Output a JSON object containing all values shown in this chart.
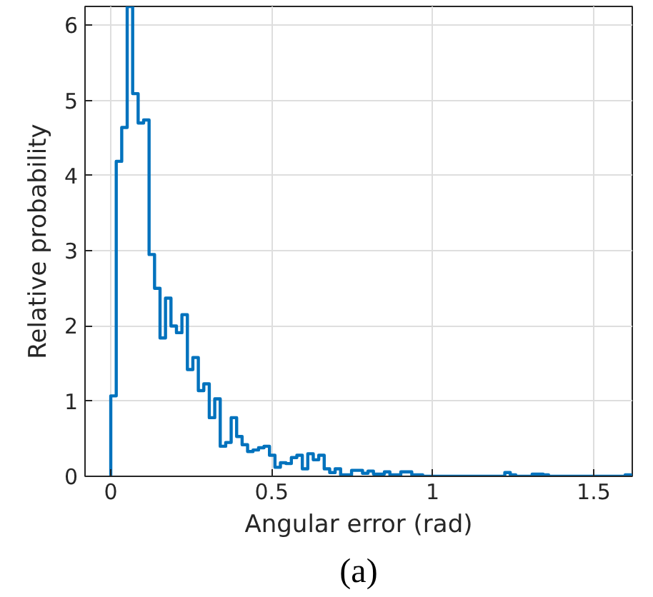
{
  "chart_data": {
    "type": "histogram",
    "xlabel": "Angular error (rad)",
    "ylabel": "Relative probability",
    "annotations": [
      "(a)"
    ],
    "bins": [
      0,
      0.017,
      0.034,
      0.051,
      0.068,
      0.085,
      0.102,
      0.119,
      0.136,
      0.153,
      0.17,
      0.187,
      0.204,
      0.221,
      0.238,
      0.255,
      0.272,
      0.289,
      0.306,
      0.323,
      0.34,
      0.357,
      0.374,
      0.391,
      0.408,
      0.425,
      0.442,
      0.459,
      0.476,
      0.493,
      0.51,
      0.527,
      0.544,
      0.561,
      0.578,
      0.595,
      0.612,
      0.629,
      0.646,
      0.663,
      0.68,
      0.697,
      0.714,
      0.731,
      0.748,
      0.765,
      0.782,
      0.799,
      0.816,
      0.833,
      0.85,
      0.867,
      0.884,
      0.901,
      0.918,
      0.935,
      0.952,
      0.969,
      0.986,
      1.003,
      1.02,
      1.037,
      1.054,
      1.071,
      1.088,
      1.105,
      1.122,
      1.139,
      1.156,
      1.173,
      1.19,
      1.207,
      1.224,
      1.241,
      1.258,
      1.275,
      1.292,
      1.309,
      1.326,
      1.343,
      1.36,
      1.377,
      1.394,
      1.411,
      1.428,
      1.445,
      1.462,
      1.479,
      1.496,
      1.513,
      1.53,
      1.547,
      1.564,
      1.581,
      1.598,
      1.615
    ],
    "values": [
      1.07,
      4.19,
      4.64,
      6.25,
      5.09,
      4.7,
      4.74,
      2.95,
      2.5,
      1.84,
      2.37,
      2.0,
      1.91,
      2.15,
      1.42,
      1.58,
      1.14,
      1.23,
      0.78,
      1.03,
      0.4,
      0.45,
      0.78,
      0.53,
      0.42,
      0.33,
      0.35,
      0.38,
      0.4,
      0.28,
      0.12,
      0.18,
      0.17,
      0.25,
      0.28,
      0.1,
      0.3,
      0.22,
      0.28,
      0.1,
      0.05,
      0.1,
      0.02,
      0.02,
      0.08,
      0.08,
      0.04,
      0.07,
      0.03,
      0.03,
      0.06,
      0.02,
      0.02,
      0.06,
      0.06,
      0.02,
      0.02,
      0,
      0,
      0,
      0,
      0,
      0,
      0,
      0,
      0,
      0,
      0,
      0,
      0,
      0,
      0,
      0.05,
      0.02,
      0,
      0,
      0,
      0.03,
      0.03,
      0.02,
      0,
      0,
      0,
      0,
      0,
      0,
      0,
      0,
      0,
      0,
      0,
      0,
      0,
      0,
      0.02
    ],
    "color": "#0072bd",
    "xlim": [
      -0.08,
      1.62
    ],
    "ylim": [
      0,
      6.25
    ],
    "xticks": [
      0,
      0.5,
      1,
      1.5
    ],
    "yticks": [
      0,
      1,
      2,
      3,
      4,
      5,
      6
    ],
    "grid": true
  }
}
